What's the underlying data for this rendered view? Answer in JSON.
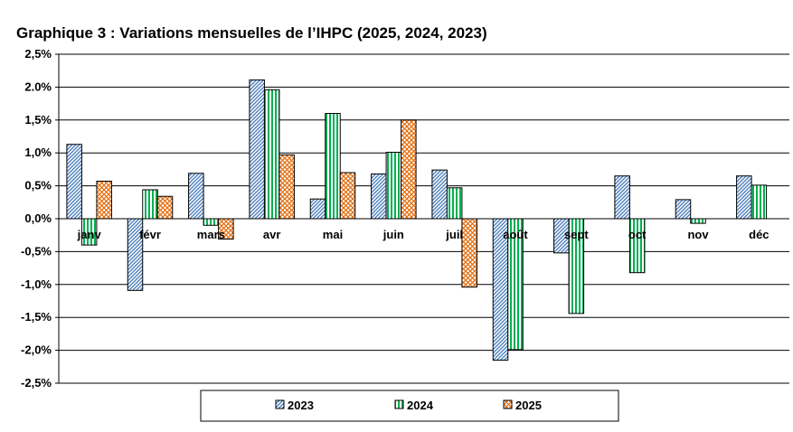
{
  "chart_data": {
    "type": "bar",
    "title": "Graphique 3 : Variations mensuelles de l’IHPC (2025, 2024, 2023)",
    "categories": [
      "janv",
      "févr",
      "mars",
      "avr",
      "mai",
      "juin",
      "juil",
      "août",
      "sept",
      "oct",
      "nov",
      "déc"
    ],
    "series": [
      {
        "name": "2023",
        "color": "#4f81bd",
        "pattern": "diagonal-stripes",
        "values": [
          1.13,
          -1.09,
          0.69,
          2.11,
          0.3,
          0.68,
          0.74,
          -2.15,
          -0.52,
          0.65,
          0.29,
          0.65
        ]
      },
      {
        "name": "2024",
        "color": "#00b050",
        "pattern": "vertical-stripes",
        "values": [
          -0.4,
          0.44,
          -0.1,
          1.96,
          1.6,
          1.01,
          0.47,
          -1.99,
          -1.44,
          -0.82,
          -0.07,
          0.51
        ]
      },
      {
        "name": "2025",
        "color": "#e46c0a",
        "pattern": "crosshatch",
        "values": [
          0.57,
          0.34,
          -0.31,
          0.97,
          0.7,
          1.5,
          -1.04,
          null,
          null,
          null,
          null,
          null
        ]
      }
    ],
    "ylim": [
      -2.5,
      2.5
    ],
    "yticks": [
      2.5,
      2.0,
      1.5,
      1.0,
      0.5,
      0.0,
      -0.5,
      -1.0,
      -1.5,
      -2.0,
      -2.5
    ],
    "ytick_labels": [
      "2,5%",
      "2.0%",
      "1,5%",
      "1,0%",
      "0,5%",
      "0,0%",
      "-0,5%",
      "-1,0%",
      "-1,5%",
      "-2,0%",
      "-2,5%"
    ],
    "xlabel": "",
    "ylabel": "",
    "grid": true,
    "legend_position": "bottom"
  }
}
